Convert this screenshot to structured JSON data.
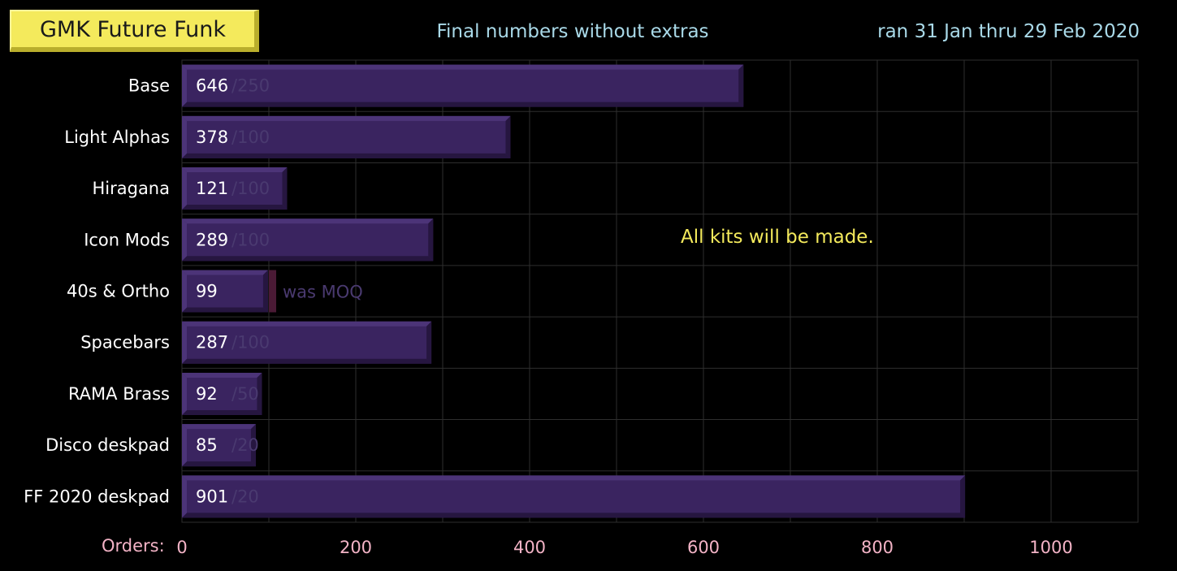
{
  "header": {
    "title": "GMK Future Funk",
    "subtitle": "Final numbers without extras",
    "date_range": "ran 31 Jan thru 29 Feb 2020"
  },
  "note": "All kits will be made.",
  "colors": {
    "background": "#000000",
    "bar_fill": "#3a2460",
    "bar_dark": "#261640",
    "bar_light": "#4c3478",
    "grid": "#2e2e2e",
    "title_box": "#f4ea5c",
    "tick_text": "#f3b3c6",
    "header_text": "#a9d9e8",
    "moq_marker": "#4a1a35"
  },
  "chart_data": {
    "type": "bar",
    "orientation": "horizontal",
    "xlabel": "Orders:",
    "xlim": [
      0,
      1100
    ],
    "xticks": [
      0,
      200,
      400,
      600,
      800,
      1000
    ],
    "grid": true,
    "categories": [
      "Base",
      "Light Alphas",
      "Hiragana",
      "Icon Mods",
      "40s & Ortho",
      "Spacebars",
      "RAMA Brass",
      "Disco deskpad",
      "FF 2020 deskpad"
    ],
    "values": [
      646,
      378,
      121,
      289,
      99,
      287,
      92,
      85,
      901
    ],
    "moq": [
      250,
      100,
      100,
      100,
      100,
      100,
      50,
      20,
      20
    ],
    "moq_labels": [
      "/250",
      "/100",
      "/100",
      "/100",
      "was MOQ",
      "/100",
      "/50",
      "/20",
      "/20"
    ]
  }
}
